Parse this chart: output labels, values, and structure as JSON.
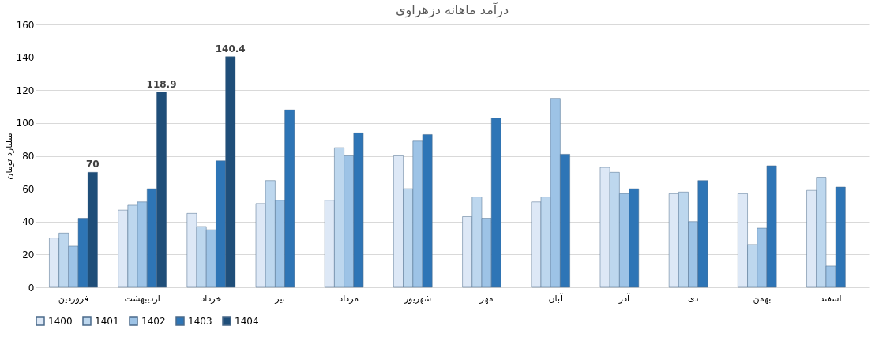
{
  "chart_data": {
    "type": "bar",
    "title": "درآمد ماهانه دزهراوی",
    "ylabel": "میلیارد تومان",
    "categories": [
      "فروردین",
      "اردیبهشت",
      "خرداد",
      "تیر",
      "مرداد",
      "شهریور",
      "مهر",
      "آبان",
      "آذر",
      "دی",
      "بهمن",
      "اسفند"
    ],
    "series": [
      {
        "name": "1400",
        "color": "#dde8f6",
        "values": [
          30,
          47,
          45,
          51,
          53,
          80,
          43,
          52,
          73,
          57,
          57,
          59
        ]
      },
      {
        "name": "1401",
        "color": "#bdd7ee",
        "values": [
          33,
          50,
          37,
          65,
          85,
          60,
          55,
          55,
          70,
          58,
          26,
          67
        ]
      },
      {
        "name": "1402",
        "color": "#9dc3e6",
        "values": [
          25,
          52,
          35,
          53,
          80,
          89,
          42,
          115,
          57,
          40,
          36,
          13
        ]
      },
      {
        "name": "1403",
        "color": "#2e75b6",
        "values": [
          42,
          60,
          77,
          108,
          94,
          93,
          103,
          81,
          60,
          65,
          74,
          61
        ]
      },
      {
        "name": "1404",
        "color": "#1f4e79",
        "values": [
          70,
          118.9,
          140.4,
          null,
          null,
          null,
          null,
          null,
          null,
          null,
          null,
          null
        ],
        "value_labels": [
          "70",
          "118.9",
          "140.4",
          null,
          null,
          null,
          null,
          null,
          null,
          null,
          null,
          null
        ]
      }
    ],
    "ylim": [
      0,
      160
    ],
    "yticks": [
      0,
      20,
      40,
      60,
      80,
      100,
      120,
      140,
      160
    ],
    "grid": "y",
    "legend": "bottom"
  }
}
